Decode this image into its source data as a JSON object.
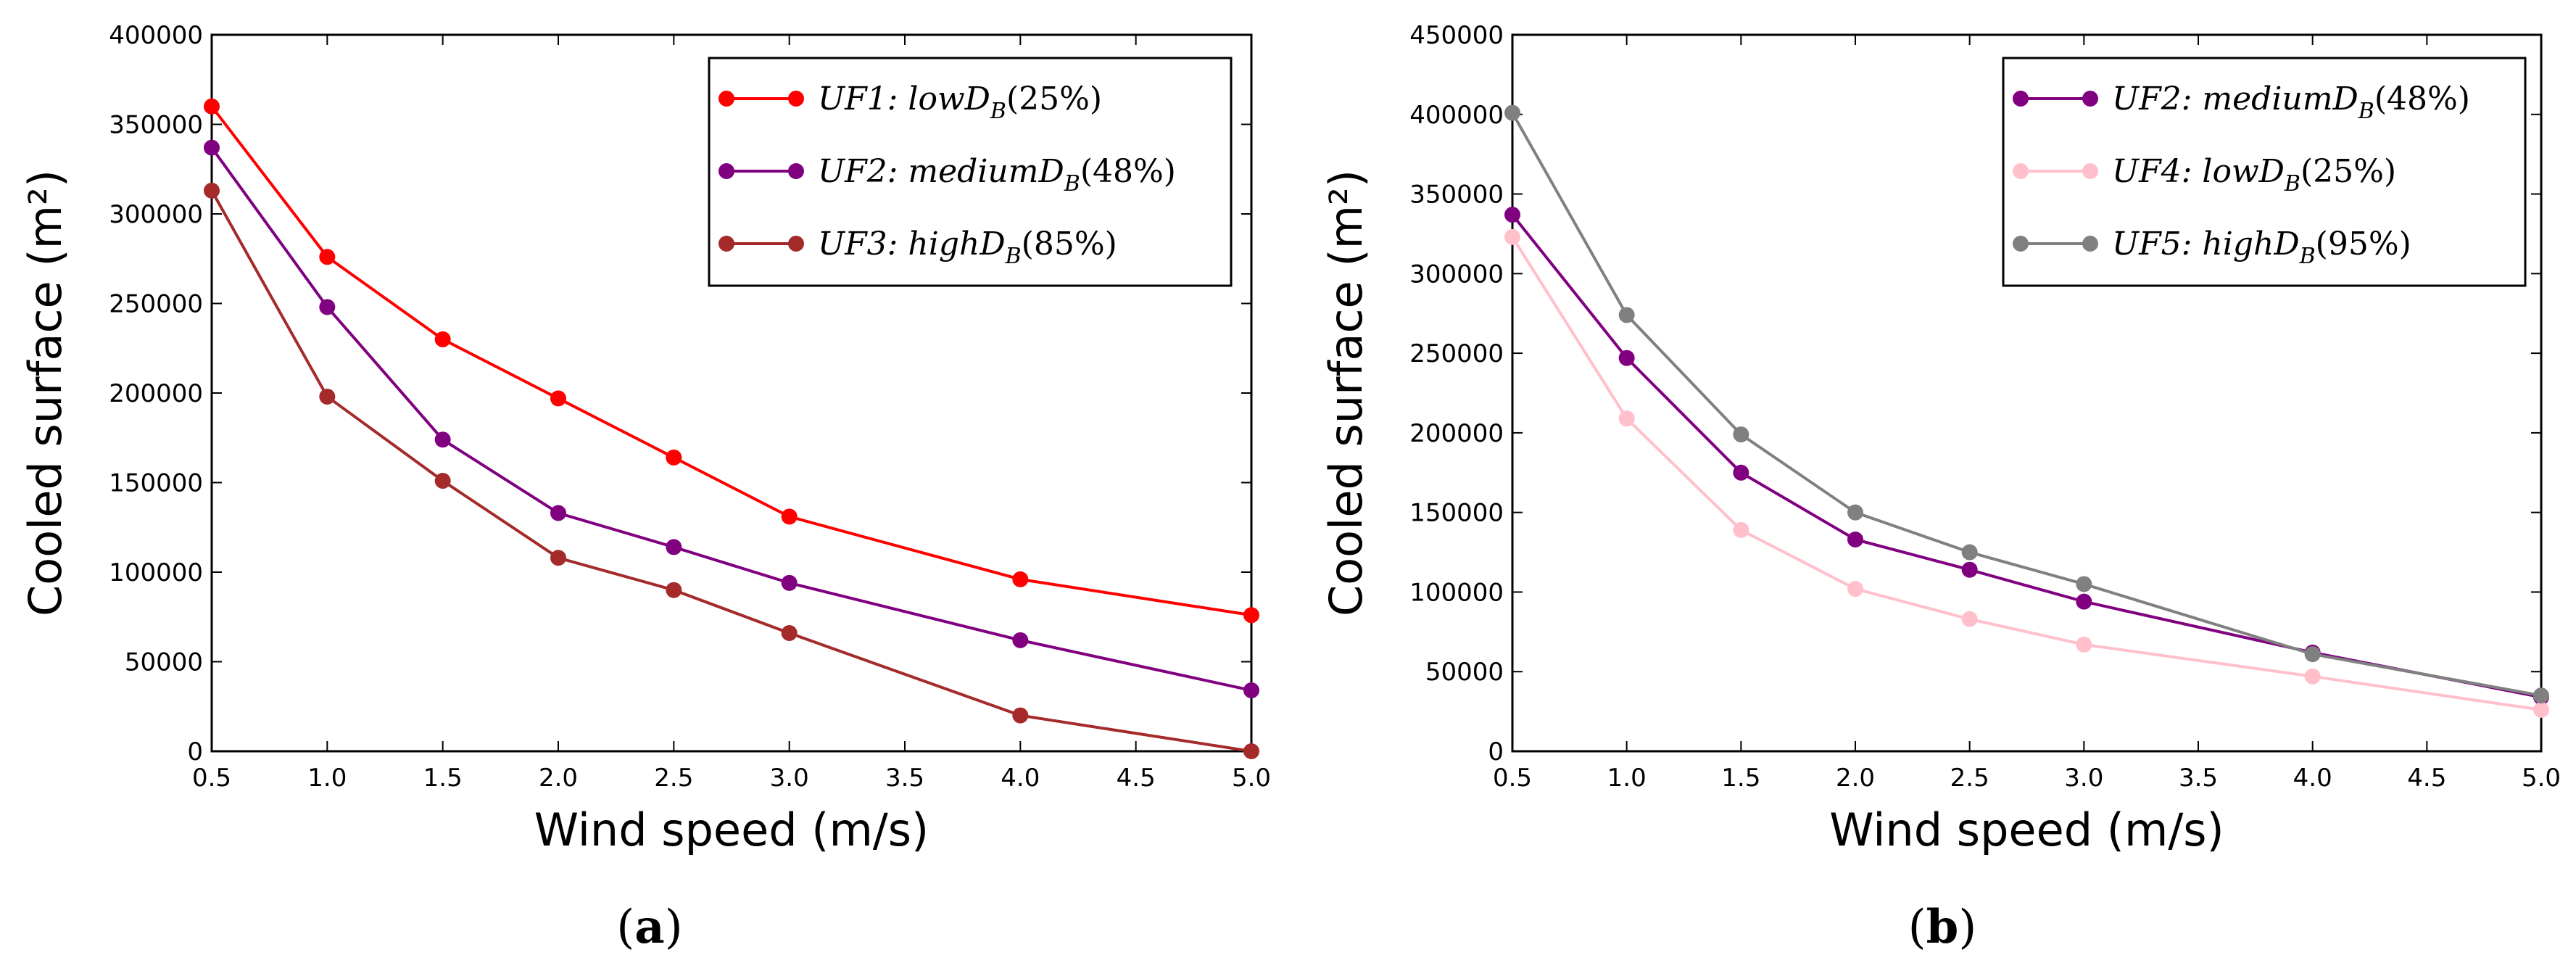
{
  "chart_data": [
    {
      "type": "line",
      "caption": {
        "open": "(",
        "letter": "a",
        "close": ")"
      },
      "xlabel": "Wind speed (m/s)",
      "ylabel": "Cooled surface (m²)",
      "xlim": [
        0.5,
        5.0
      ],
      "ylim": [
        0,
        400000
      ],
      "xticks": [
        "0.5",
        "1.0",
        "1.5",
        "2.0",
        "2.5",
        "3.0",
        "3.5",
        "4.0",
        "4.5",
        "5.0"
      ],
      "yticks": [
        "0",
        "50000",
        "100000",
        "150000",
        "200000",
        "250000",
        "300000",
        "350000",
        "400000"
      ],
      "legend_position": "top-right",
      "x": [
        0.5,
        1.0,
        1.5,
        2.0,
        2.5,
        3.0,
        4.0,
        5.0
      ],
      "series": [
        {
          "name": "UF1: lowD_B(25%)",
          "label_main": "UF1: low",
          "label_sub": "B",
          "label_tail": "(25%)",
          "color": "#ff0000",
          "values": [
            360000,
            276000,
            230000,
            197000,
            164000,
            131000,
            96000,
            76000
          ]
        },
        {
          "name": "UF2: mediumD_B(48%)",
          "label_main": "UF2: medium",
          "label_sub": "B",
          "label_tail": "(48%)",
          "color": "#800080",
          "values": [
            337000,
            248000,
            174000,
            133000,
            114000,
            94000,
            62000,
            34000
          ]
        },
        {
          "name": "UF3: highD_B(85%)",
          "label_main": "UF3: high",
          "label_sub": "B",
          "label_tail": "(85%)",
          "color": "#a52a2a",
          "values": [
            313000,
            198000,
            151000,
            108000,
            90000,
            66000,
            20000,
            0
          ]
        }
      ]
    },
    {
      "type": "line",
      "caption": {
        "open": "(",
        "letter": "b",
        "close": ")"
      },
      "xlabel": "Wind speed (m/s)",
      "ylabel": "Cooled surface (m²)",
      "xlim": [
        0.5,
        5.0
      ],
      "ylim": [
        0,
        450000
      ],
      "xticks": [
        "0.5",
        "1.0",
        "1.5",
        "2.0",
        "2.5",
        "3.0",
        "3.5",
        "4.0",
        "4.5",
        "5.0"
      ],
      "yticks": [
        "0",
        "50000",
        "100000",
        "150000",
        "200000",
        "250000",
        "300000",
        "350000",
        "400000",
        "450000"
      ],
      "legend_position": "top-right",
      "x": [
        0.5,
        1.0,
        1.5,
        2.0,
        2.5,
        3.0,
        4.0,
        5.0
      ],
      "series": [
        {
          "name": "UF2: mediumD_B(48%)",
          "label_main": "UF2: medium",
          "label_sub": "B",
          "label_tail": "(48%)",
          "color": "#800080",
          "values": [
            337000,
            247000,
            175000,
            133000,
            114000,
            94000,
            62000,
            34000
          ]
        },
        {
          "name": "UF4: lowD_B(25%)",
          "label_main": "UF4: low",
          "label_sub": "B",
          "label_tail": "(25%)",
          "color": "#ffc0cb",
          "values": [
            323000,
            209000,
            139000,
            102000,
            83000,
            67000,
            47000,
            26000
          ]
        },
        {
          "name": "UF5: highD_B(95%)",
          "label_main": "UF5: high",
          "label_sub": "B",
          "label_tail": "(95%)",
          "color": "#808080",
          "values": [
            401000,
            274000,
            199000,
            150000,
            125000,
            105000,
            61000,
            35000
          ]
        }
      ]
    }
  ]
}
